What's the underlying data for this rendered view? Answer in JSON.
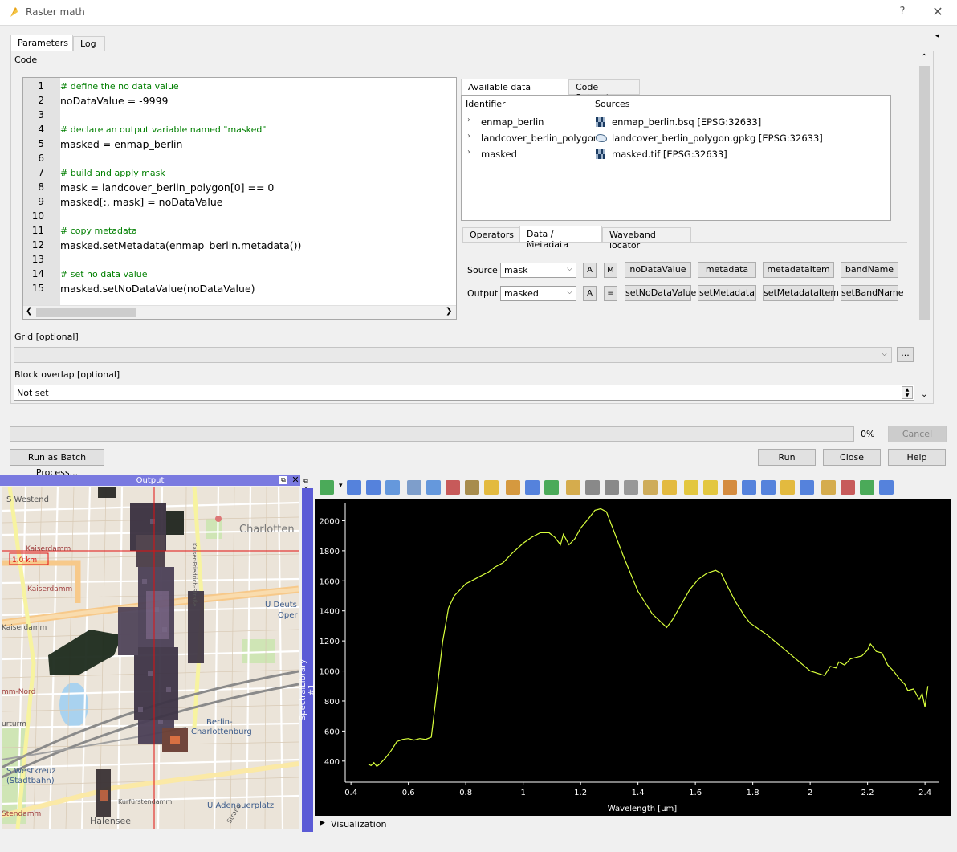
{
  "window": {
    "title": "Raster math",
    "help_label": "?",
    "close_label": "✕",
    "panel_arrow": "◂"
  },
  "tabs": [
    {
      "label": "Parameters"
    },
    {
      "label": "Log"
    }
  ],
  "code": {
    "label": "Code",
    "lines": [
      {
        "no": "1",
        "text": "# define the no data value",
        "kind": "comment"
      },
      {
        "no": "2",
        "text": "noDataValue = -9999",
        "kind": "code"
      },
      {
        "no": "3",
        "text": "",
        "kind": "code"
      },
      {
        "no": "4",
        "text": "# declare an output variable named \"masked\"",
        "kind": "comment"
      },
      {
        "no": "5",
        "text": "masked = enmap_berlin",
        "kind": "code"
      },
      {
        "no": "6",
        "text": "",
        "kind": "code"
      },
      {
        "no": "7",
        "text": "# build and apply mask",
        "kind": "comment"
      },
      {
        "no": "8",
        "text": "mask = landcover_berlin_polygon[0] == 0",
        "kind": "code"
      },
      {
        "no": "9",
        "text": "masked[:, mask] = noDataValue",
        "kind": "code"
      },
      {
        "no": "10",
        "text": "",
        "kind": "code"
      },
      {
        "no": "11",
        "text": "# copy metadata",
        "kind": "comment"
      },
      {
        "no": "12",
        "text": "masked.setMetadata(enmap_berlin.metadata())",
        "kind": "code"
      },
      {
        "no": "13",
        "text": "",
        "kind": "code"
      },
      {
        "no": "14",
        "text": "# set no data value",
        "kind": "comment"
      },
      {
        "no": "15",
        "text": "masked.setNoDataValue(noDataValue)",
        "kind": "code"
      }
    ]
  },
  "sources": {
    "tabs": [
      {
        "label": "Available data sources"
      },
      {
        "label": "Code Snippets"
      }
    ],
    "header_identifier": "Identifier",
    "header_sources": "Sources",
    "rows": [
      {
        "name": "enmap_berlin",
        "file": "enmap_berlin.bsq [EPSG:32633]",
        "icon": "raster-icon"
      },
      {
        "name": "landcover_berlin_polygon",
        "file": "landcover_berlin_polygon.gpkg [EPSG:32633]",
        "icon": "vector-icon"
      },
      {
        "name": "masked",
        "file": "masked.tif [EPSG:32633]",
        "icon": "raster-icon"
      }
    ]
  },
  "ops": {
    "tabs": [
      {
        "label": "Operators"
      },
      {
        "label": "Data / Metadata"
      },
      {
        "label": "Waveband locator"
      }
    ],
    "source_label": "Source",
    "source_value": "mask",
    "output_label": "Output",
    "output_value": "masked",
    "a_label": "A",
    "m_label": "M",
    "eq_label": "=",
    "getters": [
      "noDataValue",
      "metadata",
      "metadataItem",
      "bandName"
    ],
    "setters": [
      "setNoDataValue",
      "setMetadata",
      "setMetadataItem",
      "setBandName"
    ]
  },
  "grid": {
    "label": "Grid [optional]",
    "value": "",
    "browse_label": "..."
  },
  "overlap": {
    "label": "Block overlap [optional]",
    "value": "Not set"
  },
  "progress": {
    "value": 0,
    "percent_label": "0%"
  },
  "buttons": {
    "cancel": "Cancel",
    "batch": "Run as Batch Process...",
    "run": "Run",
    "close": "Close",
    "help": "Help"
  },
  "map": {
    "title": "Output",
    "labels": [
      "S Westend",
      "Charlotten",
      "Kaiserdamm",
      "Kaiserdamm",
      "Kaiserdamm",
      "U Deuts",
      "Oper",
      "Berlin-",
      "Charlottenburg",
      "S Westkreuz",
      "(Stadtbahn)",
      "U Adenauerplatz",
      "Kurfürstendamm",
      "Halensee",
      "urturm",
      "mm-Nord",
      "Stendamm",
      "Kaiser-Friedrich-Straße",
      "Straße"
    ]
  },
  "spectral": {
    "sidebar_label": "SpectralLibrary #1",
    "visualization_label": "Visualization",
    "toolbar_icons": [
      "add-icon",
      "dropdown-icon",
      "database-icon",
      "database-add-icon",
      "profile-icon",
      "form-view-icon",
      "table-view-icon",
      "move-icon",
      "identify-icon",
      "pencil-icon",
      "edit-icon",
      "save-icon",
      "refresh-icon",
      "add-field-icon",
      "delete-icon",
      "cut-icon",
      "copy-icon",
      "paste-icon",
      "select-icon",
      "select-all-icon",
      "invert-selection-icon",
      "deselect-icon",
      "move-top-icon",
      "filter-icon",
      "pan-icon",
      "zoom-icon",
      "new-field-icon",
      "delete-field-icon",
      "calculator-icon",
      "zoom-map-icon"
    ],
    "chart_data": {
      "type": "line",
      "title": "",
      "xlabel": "Wavelength [µm]",
      "ylabel": "",
      "xlim": [
        0.38,
        2.45
      ],
      "ylim": [
        260,
        2120
      ],
      "xticks": [
        0.4,
        0.6,
        0.8,
        1,
        1.2,
        1.4,
        1.6,
        1.8,
        2,
        2.2,
        2.4
      ],
      "yticks": [
        400,
        600,
        800,
        1000,
        1200,
        1400,
        1600,
        1800,
        2000
      ],
      "grid": false,
      "series": [
        {
          "color": "#d8ff3c",
          "x": [
            0.46,
            0.47,
            0.48,
            0.49,
            0.5,
            0.52,
            0.54,
            0.56,
            0.58,
            0.6,
            0.62,
            0.64,
            0.66,
            0.68,
            0.7,
            0.72,
            0.74,
            0.76,
            0.78,
            0.8,
            0.82,
            0.85,
            0.88,
            0.9,
            0.93,
            0.96,
            1.0,
            1.03,
            1.06,
            1.09,
            1.11,
            1.13,
            1.14,
            1.16,
            1.18,
            1.2,
            1.23,
            1.25,
            1.27,
            1.29,
            1.31,
            1.35,
            1.4,
            1.45,
            1.5,
            1.52,
            1.55,
            1.58,
            1.61,
            1.64,
            1.67,
            1.69,
            1.71,
            1.74,
            1.77,
            1.79,
            1.85,
            1.9,
            1.95,
            2.0,
            2.05,
            2.07,
            2.09,
            2.1,
            2.12,
            2.14,
            2.16,
            2.18,
            2.2,
            2.21,
            2.23,
            2.25,
            2.27,
            2.29,
            2.31,
            2.33,
            2.34,
            2.36,
            2.38,
            2.39,
            2.4,
            2.41
          ],
          "y": [
            380,
            370,
            390,
            365,
            380,
            420,
            470,
            530,
            545,
            550,
            540,
            550,
            545,
            560,
            880,
            1200,
            1420,
            1500,
            1540,
            1580,
            1600,
            1630,
            1660,
            1690,
            1720,
            1780,
            1850,
            1890,
            1920,
            1920,
            1890,
            1840,
            1910,
            1840,
            1880,
            1950,
            2020,
            2070,
            2080,
            2060,
            1960,
            1760,
            1530,
            1380,
            1290,
            1340,
            1440,
            1540,
            1610,
            1650,
            1670,
            1650,
            1570,
            1460,
            1370,
            1320,
            1240,
            1160,
            1080,
            1000,
            970,
            1030,
            1020,
            1060,
            1040,
            1080,
            1090,
            1100,
            1140,
            1180,
            1130,
            1120,
            1040,
            1000,
            950,
            910,
            870,
            880,
            810,
            850,
            760,
            900
          ]
        }
      ]
    }
  }
}
